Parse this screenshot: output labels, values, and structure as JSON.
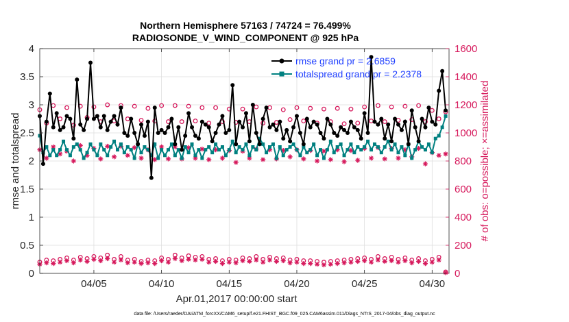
{
  "chart_data": {
    "type": "line",
    "title_line1": "Northern Hemisphere 57163 / 74724 = 76.499%",
    "title_line2": "RADIOSONDE_V_WIND_COMPONENT @ 925 hPa",
    "xlabel": "Apr.01,2017 00:00:00 start",
    "ylabel_left": "rmse and totalspread",
    "ylabel_right": "# of obs: o=possible; ×=assimilated",
    "footer": "data file: /Users/raeder/DAI/ATM_forcXX/CAM6_setup/f.e21.FHIST_BGC.f09_025.CAM6assim.011/Diags_NTrS_2017-04/obs_diag_output.nc",
    "xlim": [
      1,
      31.25
    ],
    "ylim_left": [
      0,
      4
    ],
    "ylim_right": [
      0,
      1600
    ],
    "x_ticks": [
      5,
      10,
      15,
      20,
      25,
      30
    ],
    "x_tick_labels": [
      "04/05",
      "04/10",
      "04/15",
      "04/20",
      "04/25",
      "04/30"
    ],
    "y_left_ticks": [
      "0",
      "0.5",
      "1",
      "1.5",
      "2",
      "2.5",
      "3",
      "3.5",
      "4"
    ],
    "y_right_ticks": [
      "0",
      "200",
      "400",
      "600",
      "800",
      "1000",
      "1200",
      "1400",
      "1600"
    ],
    "grid": true,
    "legend_position": "top-right",
    "colors": {
      "rmse": "#000000",
      "spread": "#008080",
      "obs": "#d6195c",
      "tick_left": "#222222"
    },
    "series": [
      {
        "name": "rmse grand pr = 2.6859",
        "color": "#000000",
        "x": [
          1.0,
          1.25,
          1.5,
          1.75,
          2.0,
          2.25,
          2.5,
          2.75,
          3.0,
          3.25,
          3.5,
          3.75,
          4.0,
          4.25,
          4.5,
          4.75,
          5.0,
          5.25,
          5.5,
          5.75,
          6.0,
          6.25,
          6.5,
          6.75,
          7.0,
          7.25,
          7.5,
          7.75,
          8.0,
          8.25,
          8.5,
          8.75,
          9.0,
          9.25,
          9.5,
          9.75,
          10.0,
          10.25,
          10.5,
          10.75,
          11.0,
          11.25,
          11.5,
          11.75,
          12.0,
          12.25,
          12.5,
          12.75,
          13.0,
          13.25,
          13.5,
          13.75,
          14.0,
          14.25,
          14.5,
          14.75,
          15.0,
          15.25,
          15.5,
          15.75,
          16.0,
          16.25,
          16.5,
          16.75,
          17.0,
          17.25,
          17.5,
          17.75,
          18.0,
          18.25,
          18.5,
          18.75,
          19.0,
          19.25,
          19.5,
          19.75,
          20.0,
          20.25,
          20.5,
          20.75,
          21.0,
          21.25,
          21.5,
          21.75,
          22.0,
          22.25,
          22.5,
          22.75,
          23.0,
          23.25,
          23.5,
          23.75,
          24.0,
          24.25,
          24.5,
          24.75,
          25.0,
          25.25,
          25.5,
          25.75,
          26.0,
          26.25,
          26.5,
          26.75,
          27.0,
          27.25,
          27.5,
          27.75,
          28.0,
          28.25,
          28.5,
          28.75,
          29.0,
          29.25,
          29.5,
          29.75,
          30.0,
          30.25,
          30.5,
          30.75,
          31.0
        ],
        "values": [
          2.8,
          1.95,
          2.7,
          3.2,
          2.6,
          2.85,
          2.55,
          2.6,
          2.8,
          2.75,
          2.4,
          3.45,
          2.65,
          2.55,
          2.75,
          3.75,
          2.75,
          2.8,
          2.6,
          2.8,
          2.55,
          2.7,
          2.8,
          2.65,
          2.95,
          2.5,
          2.45,
          2.75,
          2.5,
          2.3,
          2.65,
          2.45,
          2.7,
          1.7,
          2.95,
          2.5,
          2.55,
          2.5,
          2.6,
          2.75,
          2.3,
          2.6,
          2.2,
          2.45,
          2.85,
          2.6,
          2.45,
          2.4,
          2.7,
          2.65,
          2.6,
          2.35,
          2.5,
          2.65,
          2.8,
          2.5,
          2.55,
          3.35,
          2.3,
          2.7,
          2.6,
          2.85,
          2.35,
          3.0,
          2.5,
          2.3,
          2.75,
          2.95,
          2.6,
          2.65,
          2.55,
          2.7,
          2.4,
          2.55,
          2.35,
          2.6,
          2.8,
          2.5,
          2.3,
          2.75,
          2.6,
          2.7,
          2.65,
          2.5,
          2.4,
          2.75,
          2.65,
          2.5,
          2.45,
          2.6,
          2.55,
          2.5,
          2.7,
          2.6,
          2.55,
          2.4,
          2.85,
          2.5,
          3.85,
          2.7,
          2.65,
          2.75,
          2.4,
          2.65,
          2.35,
          2.75,
          2.65,
          2.55,
          2.7,
          2.3,
          2.9,
          2.6,
          2.35,
          2.75,
          2.6,
          2.95,
          2.7,
          2.65,
          3.25,
          3.6,
          2.9
        ]
      },
      {
        "name": "totalspread grand pr = 2.2378",
        "color": "#008080",
        "x": [
          1.0,
          1.25,
          1.5,
          1.75,
          2.0,
          2.25,
          2.5,
          2.75,
          3.0,
          3.25,
          3.5,
          3.75,
          4.0,
          4.25,
          4.5,
          4.75,
          5.0,
          5.25,
          5.5,
          5.75,
          6.0,
          6.25,
          6.5,
          6.75,
          7.0,
          7.25,
          7.5,
          7.75,
          8.0,
          8.25,
          8.5,
          8.75,
          9.0,
          9.25,
          9.5,
          9.75,
          10.0,
          10.25,
          10.5,
          10.75,
          11.0,
          11.25,
          11.5,
          11.75,
          12.0,
          12.25,
          12.5,
          12.75,
          13.0,
          13.25,
          13.5,
          13.75,
          14.0,
          14.25,
          14.5,
          14.75,
          15.0,
          15.25,
          15.5,
          15.75,
          16.0,
          16.25,
          16.5,
          16.75,
          17.0,
          17.25,
          17.5,
          17.75,
          18.0,
          18.25,
          18.5,
          18.75,
          19.0,
          19.25,
          19.5,
          19.75,
          20.0,
          20.25,
          20.5,
          20.75,
          21.0,
          21.25,
          21.5,
          21.75,
          22.0,
          22.25,
          22.5,
          22.75,
          23.0,
          23.25,
          23.5,
          23.75,
          24.0,
          24.25,
          24.5,
          24.75,
          25.0,
          25.25,
          25.5,
          25.75,
          26.0,
          26.25,
          26.5,
          26.75,
          27.0,
          27.25,
          27.5,
          27.75,
          28.0,
          28.25,
          28.5,
          28.75,
          29.0,
          29.25,
          29.5,
          29.75,
          30.0,
          30.25,
          30.5,
          30.75,
          31.0
        ],
        "values": [
          2.45,
          2.15,
          2.25,
          2.1,
          2.2,
          2.1,
          2.2,
          2.35,
          2.2,
          2.1,
          2.25,
          2.3,
          2.2,
          2.05,
          2.15,
          2.3,
          2.2,
          2.1,
          2.3,
          2.2,
          2.1,
          2.25,
          2.35,
          2.2,
          2.3,
          2.15,
          2.25,
          2.2,
          2.05,
          2.3,
          2.15,
          2.25,
          2.2,
          2.1,
          2.3,
          2.05,
          2.2,
          2.1,
          2.2,
          2.3,
          2.1,
          2.2,
          2.05,
          2.25,
          2.15,
          2.3,
          2.1,
          2.2,
          2.05,
          2.2,
          2.25,
          2.15,
          2.3,
          2.2,
          2.25,
          2.1,
          2.2,
          2.35,
          2.15,
          2.25,
          2.2,
          2.3,
          2.1,
          2.25,
          2.2,
          2.4,
          2.3,
          2.15,
          2.25,
          2.3,
          2.05,
          2.25,
          2.1,
          2.2,
          2.25,
          2.3,
          2.2,
          2.1,
          2.25,
          2.15,
          2.2,
          2.3,
          2.1,
          2.2,
          2.05,
          2.2,
          2.35,
          2.15,
          2.25,
          2.3,
          2.1,
          2.2,
          2.3,
          2.15,
          2.25,
          2.2,
          2.25,
          2.35,
          2.2,
          2.3,
          2.25,
          2.15,
          2.25,
          2.35,
          2.2,
          2.3,
          2.15,
          2.25,
          2.1,
          2.3,
          2.05,
          2.2,
          2.35,
          2.25,
          2.2,
          2.3,
          2.15,
          2.4,
          2.45,
          2.6,
          2.8
        ]
      }
    ],
    "obs_possible": {
      "name": "# obs possible",
      "x": [
        1.0,
        1.5,
        2.0,
        2.5,
        3.0,
        3.5,
        4.0,
        4.5,
        5.0,
        5.5,
        6.0,
        6.5,
        7.0,
        7.5,
        8.0,
        8.5,
        9.0,
        9.5,
        10.0,
        10.5,
        11.0,
        11.5,
        12.0,
        12.5,
        13.0,
        13.5,
        14.0,
        14.5,
        15.0,
        15.5,
        16.0,
        16.5,
        17.0,
        17.5,
        18.0,
        18.5,
        19.0,
        19.5,
        20.0,
        20.5,
        21.0,
        21.5,
        22.0,
        22.5,
        23.0,
        23.5,
        24.0,
        24.5,
        25.0,
        25.5,
        26.0,
        26.5,
        27.0,
        27.5,
        28.0,
        28.5,
        29.0,
        29.5,
        30.0,
        30.5,
        31.0
      ],
      "values": [
        1165,
        1070,
        1195,
        1100,
        1180,
        1055,
        1190,
        1110,
        1185,
        1080,
        1200,
        1085,
        1195,
        1100,
        1190,
        1090,
        1175,
        1085,
        1195,
        1080,
        1195,
        1080,
        1190,
        1085,
        1180,
        1070,
        1180,
        1080,
        1170,
        1075,
        1170,
        1080,
        1185,
        1070,
        1180,
        1075,
        1165,
        1095,
        1180,
        1085,
        1175,
        1070,
        1170,
        1080,
        1175,
        1065,
        1170,
        1070,
        1185,
        1085,
        1195,
        1080,
        1185,
        1090,
        1190,
        1095,
        1195,
        1080,
        1160,
        1100,
        1150
      ]
    },
    "obs_assimilated": {
      "name": "# obs assimilated",
      "x": [
        1.0,
        1.5,
        2.0,
        2.5,
        3.0,
        3.5,
        4.0,
        4.5,
        5.0,
        5.5,
        6.0,
        6.5,
        7.0,
        7.5,
        8.0,
        8.5,
        9.0,
        9.5,
        10.0,
        10.5,
        11.0,
        11.5,
        12.0,
        12.5,
        13.0,
        13.5,
        14.0,
        14.5,
        15.0,
        15.5,
        16.0,
        16.5,
        17.0,
        17.5,
        18.0,
        18.5,
        19.0,
        19.5,
        20.0,
        20.5,
        21.0,
        21.5,
        22.0,
        22.5,
        23.0,
        23.5,
        24.0,
        24.5,
        25.0,
        25.5,
        26.0,
        26.5,
        27.0,
        27.5,
        28.0,
        28.5,
        29.0,
        29.5,
        30.0,
        30.5,
        31.0
      ],
      "values": [
        880,
        820,
        900,
        850,
        870,
        800,
        910,
        840,
        890,
        815,
        905,
        830,
        905,
        840,
        895,
        820,
        880,
        810,
        900,
        815,
        900,
        815,
        895,
        820,
        885,
        810,
        880,
        820,
        875,
        790,
        870,
        820,
        885,
        810,
        880,
        815,
        875,
        830,
        880,
        815,
        875,
        800,
        870,
        810,
        880,
        795,
        875,
        805,
        890,
        820,
        895,
        815,
        890,
        820,
        880,
        830,
        890,
        780,
        860,
        840,
        850
      ]
    },
    "obs_possible_low": {
      "name": "# obs possible (low)",
      "x": [
        1.0,
        1.5,
        2.0,
        2.5,
        3.0,
        3.5,
        4.0,
        4.5,
        5.0,
        5.5,
        6.0,
        6.5,
        7.0,
        7.5,
        8.0,
        8.5,
        9.0,
        9.5,
        10.0,
        10.5,
        11.0,
        11.5,
        12.0,
        12.5,
        13.0,
        13.5,
        14.0,
        14.5,
        15.0,
        15.5,
        16.0,
        16.5,
        17.0,
        17.5,
        18.0,
        18.5,
        19.0,
        19.5,
        20.0,
        20.5,
        21.0,
        21.5,
        22.0,
        22.5,
        23.0,
        23.5,
        24.0,
        24.5,
        25.0,
        25.5,
        26.0,
        26.5,
        27.0,
        27.5,
        28.0,
        28.5,
        29.0,
        29.5,
        30.0,
        30.5,
        31.0
      ],
      "values": [
        80,
        95,
        90,
        100,
        110,
        95,
        115,
        105,
        120,
        110,
        130,
        100,
        120,
        95,
        100,
        85,
        95,
        90,
        110,
        100,
        130,
        110,
        125,
        115,
        120,
        100,
        105,
        90,
        100,
        95,
        110,
        105,
        120,
        100,
        115,
        105,
        110,
        95,
        100,
        90,
        90,
        85,
        80,
        85,
        90,
        95,
        100,
        105,
        110,
        100,
        120,
        105,
        115,
        100,
        110,
        95,
        105,
        90,
        100,
        115,
        10
      ]
    },
    "obs_assimilated_low": {
      "name": "# obs assimilated (low)",
      "x": [
        1.0,
        1.5,
        2.0,
        2.5,
        3.0,
        3.5,
        4.0,
        4.5,
        5.0,
        5.5,
        6.0,
        6.5,
        7.0,
        7.5,
        8.0,
        8.5,
        9.0,
        9.5,
        10.0,
        10.5,
        11.0,
        11.5,
        12.0,
        12.5,
        13.0,
        13.5,
        14.0,
        14.5,
        15.0,
        15.5,
        16.0,
        16.5,
        17.0,
        17.5,
        18.0,
        18.5,
        19.0,
        19.5,
        20.0,
        20.5,
        21.0,
        21.5,
        22.0,
        22.5,
        23.0,
        23.5,
        24.0,
        24.5,
        25.0,
        25.5,
        26.0,
        26.5,
        27.0,
        27.5,
        28.0,
        28.5,
        29.0,
        29.5,
        30.0,
        30.5,
        31.0
      ],
      "values": [
        65,
        75,
        70,
        80,
        90,
        75,
        95,
        85,
        100,
        90,
        105,
        80,
        95,
        75,
        80,
        70,
        75,
        70,
        90,
        80,
        105,
        90,
        100,
        95,
        100,
        80,
        85,
        70,
        80,
        75,
        90,
        85,
        95,
        80,
        95,
        85,
        90,
        75,
        80,
        70,
        70,
        65,
        60,
        65,
        70,
        75,
        80,
        85,
        90,
        80,
        95,
        85,
        90,
        80,
        90,
        75,
        85,
        70,
        80,
        95,
        5
      ]
    }
  }
}
